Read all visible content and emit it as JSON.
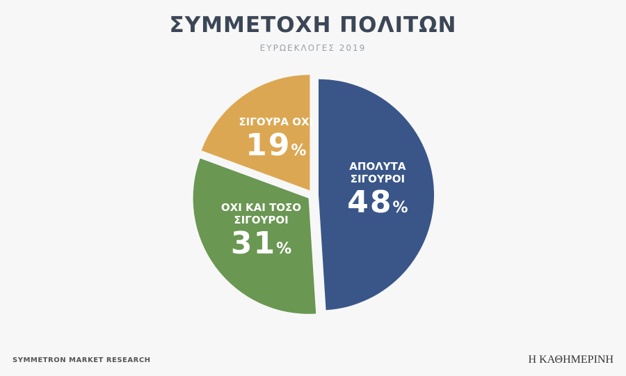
{
  "chart_data": {
    "type": "pie",
    "title": "ΣΥΜΜΕΤΟΧΗ ΠΟΛΙΤΩΝ",
    "subtitle": "ΕΥΡΩΕΚΛΟΓΕΣ 2019",
    "categories": [
      "ΑΠΟΛΥΤΑ ΣΙΓΟΥΡΟΙ",
      "ΟΧΙ ΚΑΙ ΤΟΣΟ ΣΙΓΟΥΡΟΙ",
      "ΣΙΓΟΥΡΑ ΟΧΙ"
    ],
    "values": [
      48,
      31,
      19
    ],
    "value_labels": [
      "48%",
      "31%",
      "19%"
    ],
    "colors": [
      "#3a5689",
      "#6a9752",
      "#dca752"
    ],
    "source": "SYMMETRON MARKET RESEARCH",
    "brand": "Η ΚΑΘΗΜΕΡΙΝΗ"
  }
}
